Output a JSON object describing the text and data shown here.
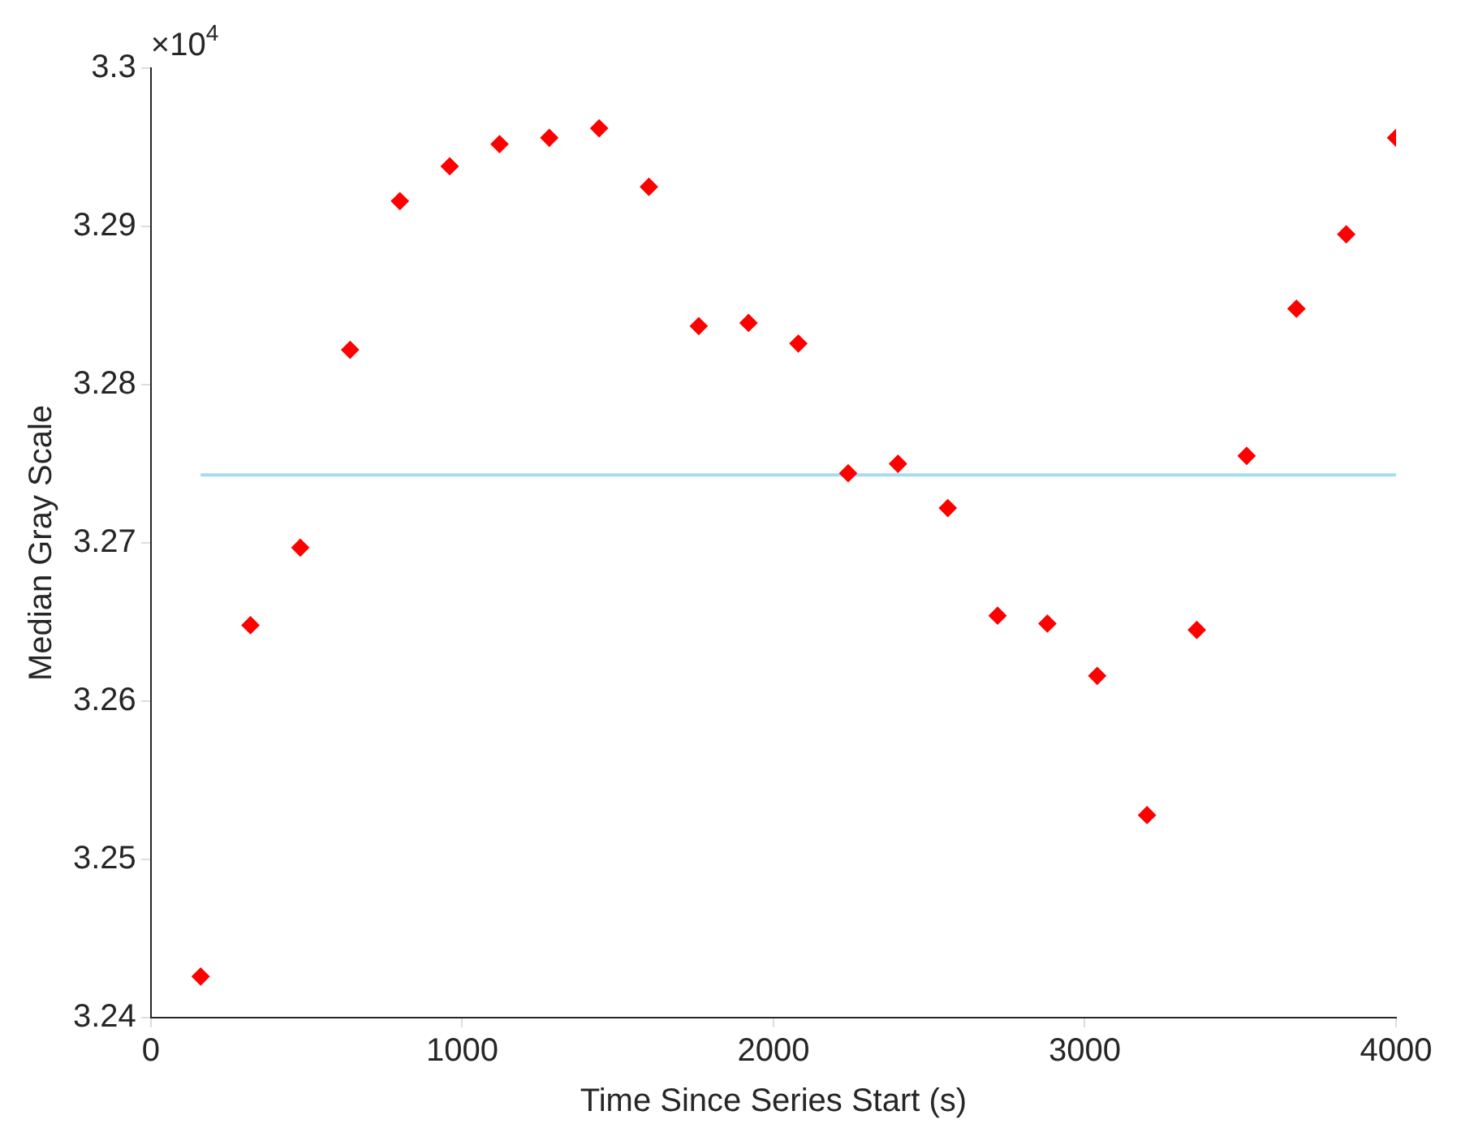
{
  "chart_data": {
    "type": "scatter",
    "xlabel": "Time Since Series Start (s)",
    "ylabel": "Median Gray Scale",
    "annotations": [
      "×10$^{4}$"
    ],
    "xlim": [
      0,
      4000
    ],
    "xticks": [
      0,
      1000,
      2000,
      3000,
      4000
    ],
    "ylim": [
      3.24,
      3.3
    ],
    "yticks": [
      3.24,
      3.25,
      3.26,
      3.27,
      3.28,
      3.29,
      3.3
    ],
    "grid": false,
    "legend": false,
    "series": [
      {
        "type": "scatter",
        "marker": "diamond",
        "color": "#ff0000",
        "x": [
          160,
          320,
          480,
          640,
          800,
          960,
          1120,
          1280,
          1440,
          1600,
          1760,
          1920,
          2080,
          2240,
          2400,
          2560,
          2720,
          2880,
          3040,
          3200,
          3360,
          3520,
          3680,
          3840,
          4000
        ],
        "values": [
          3.2426,
          3.2648,
          3.2697,
          3.2822,
          3.2916,
          3.2938,
          3.2952,
          3.2956,
          3.2962,
          3.2925,
          3.2837,
          3.2839,
          3.2826,
          3.2744,
          3.275,
          3.2722,
          3.2654,
          3.2649,
          3.2616,
          3.2528,
          3.2645,
          3.2755,
          3.2848,
          3.2895,
          3.2956
        ]
      },
      {
        "type": "line",
        "color": "#a6dcf2",
        "x": [
          160,
          4000
        ],
        "values": [
          3.2743,
          3.2743
        ]
      }
    ]
  }
}
